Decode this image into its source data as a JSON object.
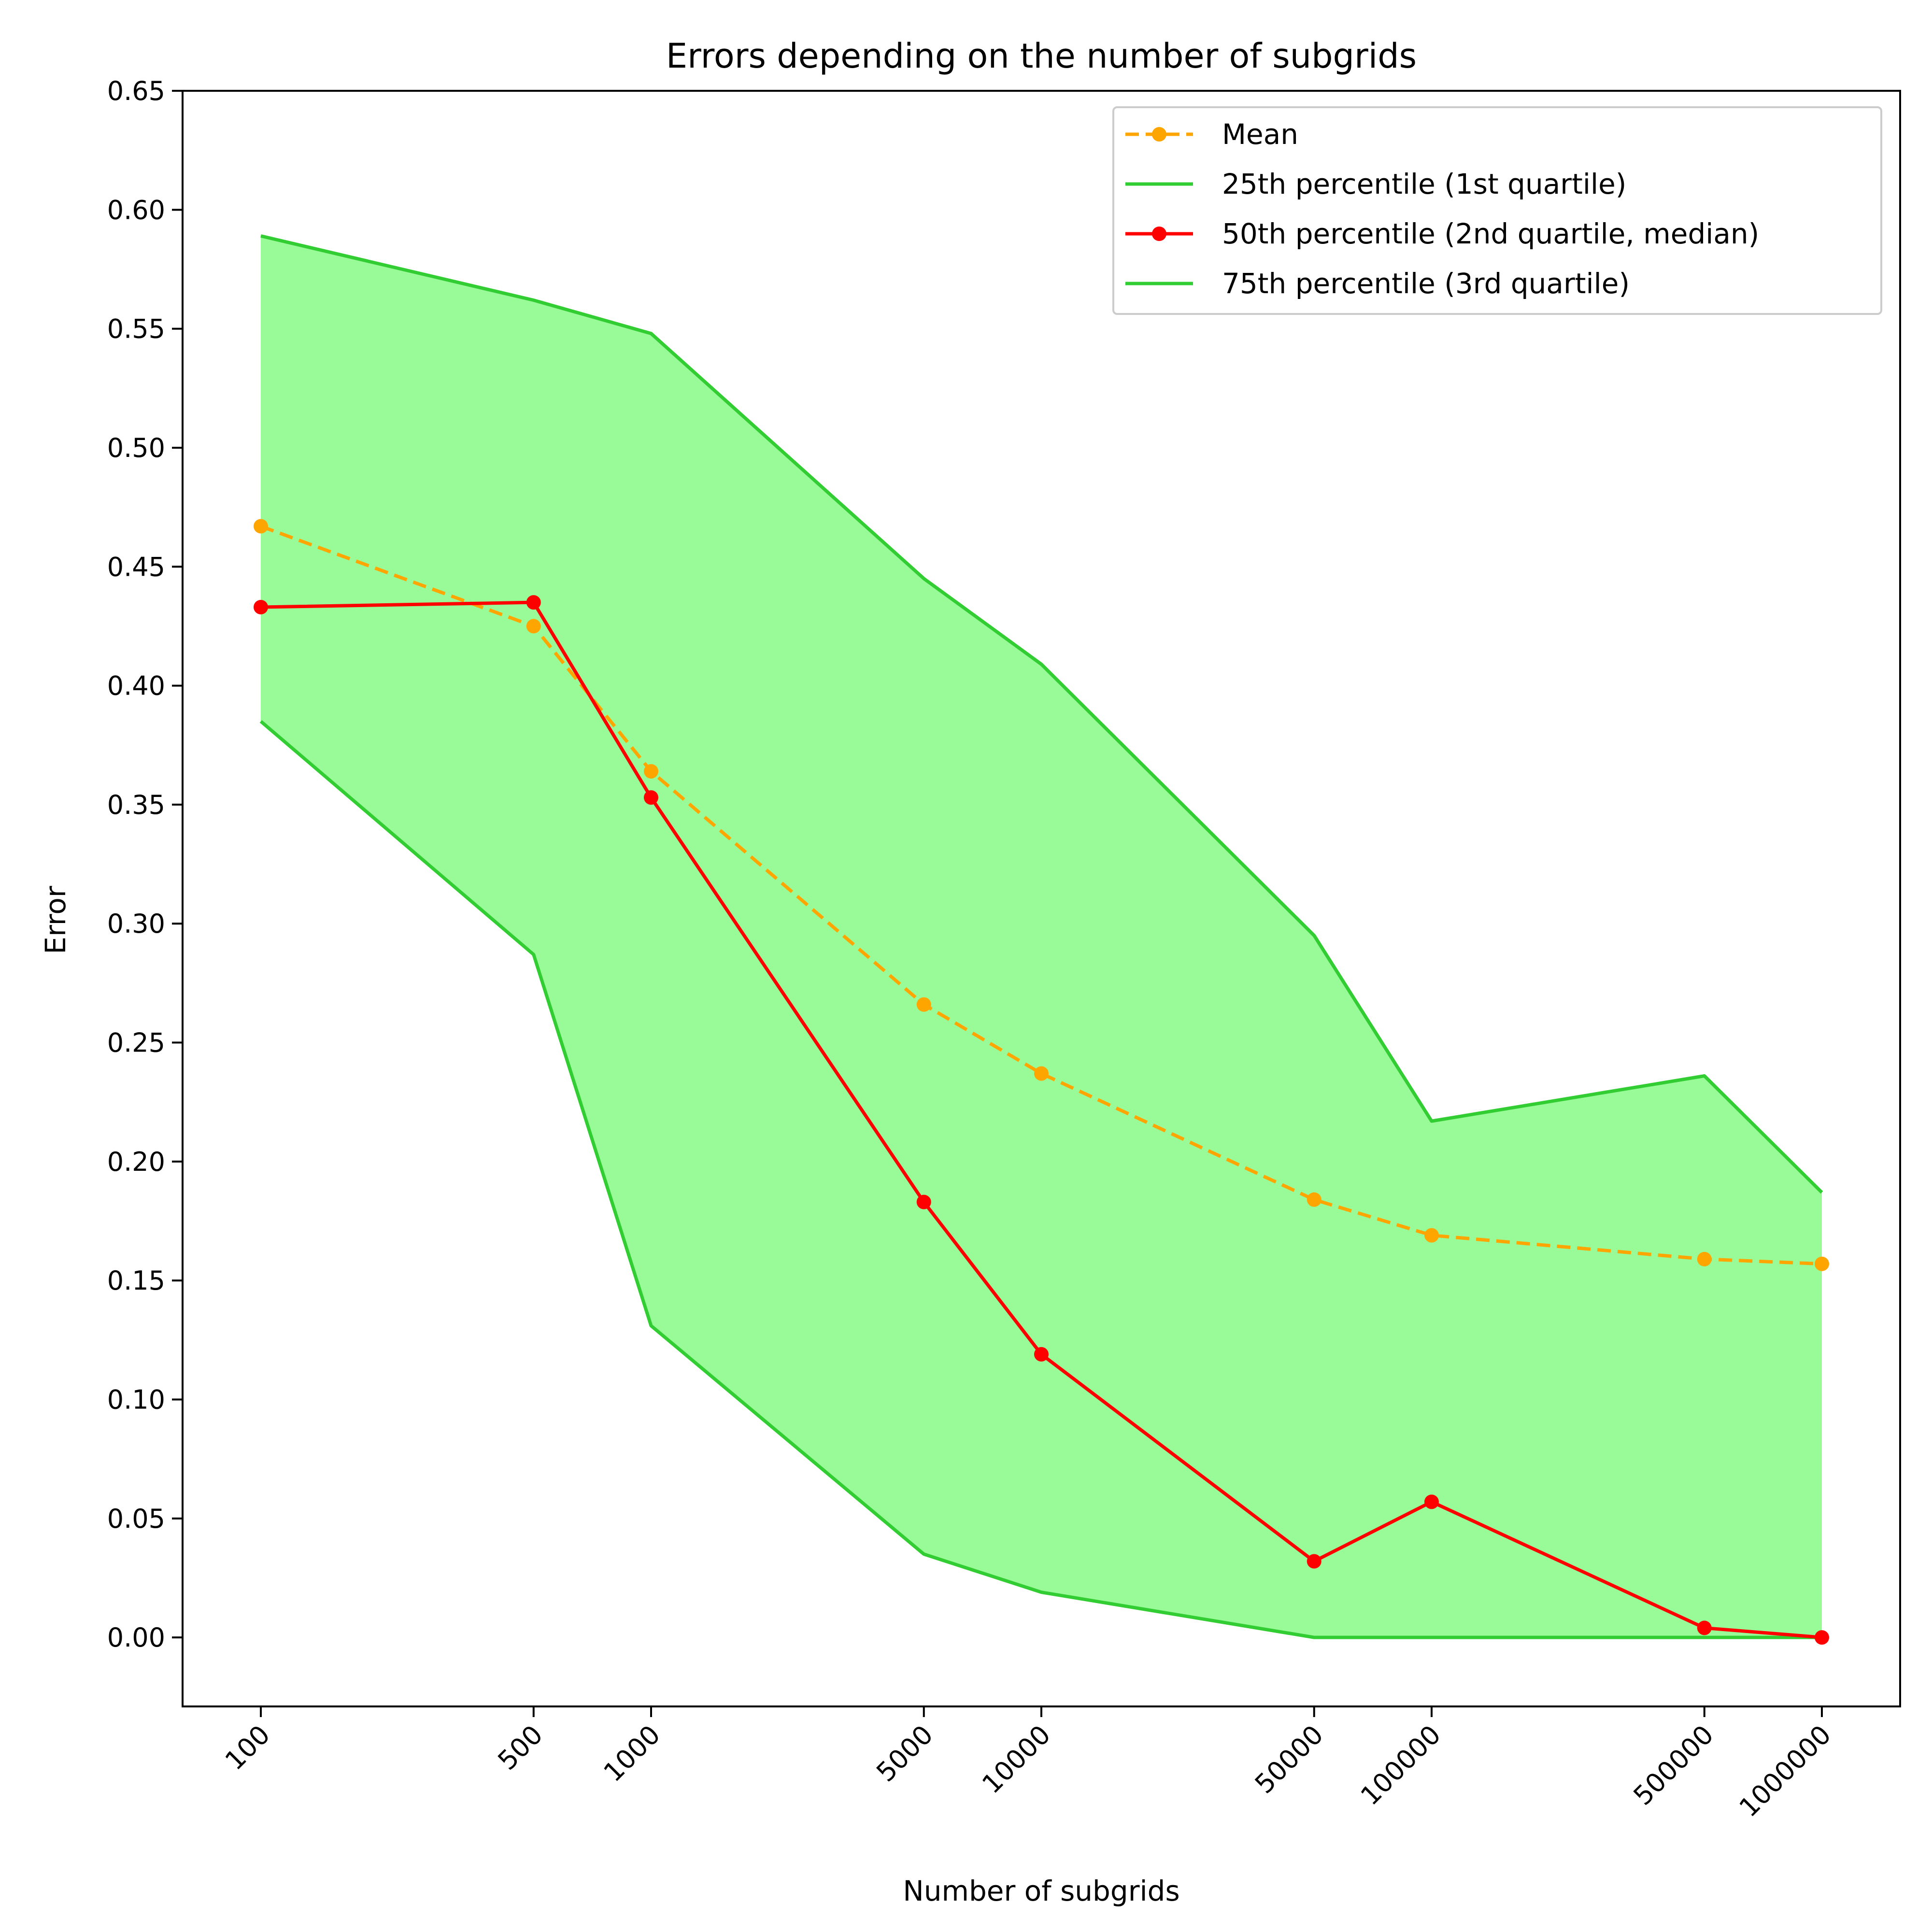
{
  "chart_data": {
    "type": "line",
    "title": "Errors depending on the number of subgrids",
    "xlabel": "Number of subgrids",
    "ylabel": "Error",
    "xscale": "log",
    "x": [
      100,
      500,
      1000,
      5000,
      10000,
      50000,
      100000,
      500000,
      1000000
    ],
    "x_tick_labels": [
      "100",
      "500",
      "1000",
      "5000",
      "10000",
      "50000",
      "100000",
      "500000",
      "1000000"
    ],
    "yticks": [
      0.0,
      0.05,
      0.1,
      0.15,
      0.2,
      0.25,
      0.3,
      0.35,
      0.4,
      0.45,
      0.5,
      0.55,
      0.6,
      0.65
    ],
    "y_tick_labels": [
      "0.00",
      "0.05",
      "0.10",
      "0.15",
      "0.20",
      "0.25",
      "0.30",
      "0.35",
      "0.40",
      "0.45",
      "0.50",
      "0.55",
      "0.60",
      "0.65"
    ],
    "ylim": [
      -0.029,
      0.65
    ],
    "grid": false,
    "legend_position": "top-right",
    "fill_between": {
      "lower": "25th percentile (1st quartile)",
      "upper": "75th percentile (3rd quartile)",
      "color": "#98fb98"
    },
    "series": [
      {
        "name": "Mean",
        "color": "#ffa500",
        "style": "dashed",
        "markers": true,
        "values": [
          0.467,
          0.425,
          0.364,
          0.266,
          0.237,
          0.184,
          0.169,
          0.159,
          0.157
        ]
      },
      {
        "name": "25th percentile (1st quartile)",
        "color": "#32cd32",
        "style": "solid",
        "markers": false,
        "values": [
          0.385,
          0.287,
          0.131,
          0.035,
          0.019,
          0.0,
          0.0,
          0.0,
          0.0
        ]
      },
      {
        "name": "50th percentile (2nd quartile, median)",
        "color": "#ff0000",
        "style": "solid",
        "markers": true,
        "values": [
          0.433,
          0.435,
          0.353,
          0.183,
          0.119,
          0.032,
          0.057,
          0.004,
          0.0
        ]
      },
      {
        "name": "75th percentile (3rd quartile)",
        "color": "#32cd32",
        "style": "solid",
        "markers": false,
        "values": [
          0.589,
          0.562,
          0.548,
          0.445,
          0.409,
          0.295,
          0.217,
          0.236,
          0.187
        ]
      }
    ]
  }
}
